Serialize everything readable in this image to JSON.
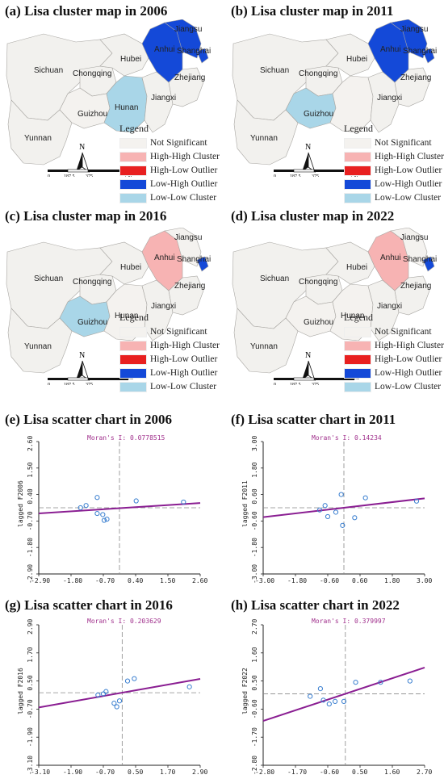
{
  "colors": {
    "not_significant": "#f4f2ef",
    "high_high": "#f7b3b3",
    "high_low": "#e82020",
    "low_high": "#1449d8",
    "low_low": "#a9d6e8",
    "province_fill": "#f2f1ee",
    "province_stroke": "#a8a6a2",
    "regression_line": "#8a1e92",
    "moran_text": "#a0308c",
    "point_stroke": "#3a7fd0",
    "ref_line": "#888888"
  },
  "maps": [
    {
      "title": "(a) Lisa cluster map in 2006",
      "labels": {
        "sichuan": "Sichuan",
        "chongqing": "Chongqing",
        "hubei": "Hubei",
        "hunan": "Hunan",
        "guizhou": "Guizhou",
        "yunnan": "Yunnan",
        "jiangxi": "Jiangxi",
        "anhui": "Anhui",
        "jiangsu": "Jiangsu",
        "shanghai": "Shanghai",
        "zhejiang": "Zhejiang"
      },
      "provinces": {
        "anhui": "Low-High Outlier",
        "jiangsu": "Low-High Outlier",
        "shanghai": "Low-High Outlier",
        "hunan": "Low-Low Cluster",
        "guizhou": "Not Significant"
      }
    },
    {
      "title": "(b) Lisa cluster map in 2011",
      "labels": {
        "sichuan": "Sichuan",
        "chongqing": "Chongqing",
        "hubei": "Hubei",
        "hunan": "",
        "guizhou": "Guizhou",
        "yunnan": "Yunnan",
        "jiangxi": "Jiangxi",
        "anhui": "Anhui",
        "jiangsu": "Jiangsu",
        "shanghai": "Shanghai",
        "zhejiang": "Zhejiang"
      },
      "provinces": {
        "anhui": "Low-High Outlier",
        "jiangsu": "Low-High Outlier",
        "shanghai": "Low-High Outlier",
        "hunan": "Not Significant",
        "guizhou": "Low-Low Cluster"
      }
    },
    {
      "title": "(c) Lisa cluster map in 2016",
      "labels": {
        "sichuan": "Sichuan",
        "chongqing": "Chongqing",
        "hubei": "Hubei",
        "hunan": "Hunan",
        "guizhou": "Guizhou",
        "yunnan": "Yunnan",
        "jiangxi": "Jiangxi",
        "anhui": "Anhui",
        "jiangsu": "Jiangsu",
        "shanghai": "Shanghai",
        "zhejiang": "Zhejiang"
      },
      "provinces": {
        "anhui": "High-High Cluster",
        "jiangsu": "Not Significant",
        "shanghai": "Low-High Outlier",
        "hunan": "Not Significant",
        "guizhou": "Low-Low Cluster"
      }
    },
    {
      "title": "(d) Lisa cluster map in 2022",
      "labels": {
        "sichuan": "Sichuan",
        "chongqing": "Chongqing",
        "hubei": "Hubei",
        "hunan": "Hunan",
        "guizhou": "Guizhou",
        "yunnan": "Yunnan",
        "jiangxi": "Jiangxi",
        "anhui": "Anhui",
        "jiangsu": "Jiangsu",
        "shanghai": "Shanghai",
        "zhejiang": "Zhejiang"
      },
      "provinces": {
        "anhui": "High-High Cluster",
        "jiangsu": "Not Significant",
        "shanghai": "Low-High Outlier",
        "hunan": "Not Significant",
        "guizhou": "Not Significant"
      }
    }
  ],
  "legend": {
    "title": "Legend",
    "items": [
      {
        "label": "Not Significant",
        "color": "#f4f2ef"
      },
      {
        "label": "High-High Cluster",
        "color": "#f7b3b3"
      },
      {
        "label": "High-Low Outlier",
        "color": "#e82020"
      },
      {
        "label": "Low-High Outlier",
        "color": "#1449d8"
      },
      {
        "label": "Low-Low Cluster",
        "color": "#a9d6e8"
      }
    ]
  },
  "scale_bar": {
    "ticks": [
      "0",
      "187.5",
      "375",
      "750"
    ],
    "unit": "Km"
  },
  "north_arrow": {
    "label": "N"
  },
  "chart_data": [
    {
      "type": "scatter",
      "title": "(e) Lisa scatter chart in 2006",
      "annotation": "Moran's I: 0.0778515",
      "ylabel": "lagged F2006",
      "x_ticks": [
        "-2.90",
        "-1.80",
        "-0.70",
        "0.40",
        "1.50",
        "2.60"
      ],
      "y_ticks": [
        "-2.90",
        "-1.80",
        "-0.70",
        "0.40",
        "1.50",
        "2.60"
      ],
      "xlim": [
        -2.9,
        2.9
      ],
      "ylim": [
        -2.9,
        2.9
      ],
      "points": [
        [
          -1.4,
          0.0
        ],
        [
          -1.2,
          0.1
        ],
        [
          -0.8,
          0.45
        ],
        [
          -0.8,
          -0.25
        ],
        [
          -0.6,
          -0.3
        ],
        [
          -0.55,
          -0.55
        ],
        [
          -0.45,
          -0.5
        ],
        [
          0.6,
          0.3
        ],
        [
          2.3,
          0.25
        ]
      ],
      "regression": {
        "slope": 0.0779,
        "intercept": -0.02
      }
    },
    {
      "type": "scatter",
      "title": "(f) Lisa scatter chart in 2011",
      "annotation": "Moran's I: 0.14234",
      "ylabel": "lagged F2011",
      "x_ticks": [
        "-3.00",
        "-1.80",
        "-0.60",
        "0.60",
        "1.80",
        "3.00"
      ],
      "y_ticks": [
        "-3.00",
        "-1.80",
        "-0.60",
        "0.60",
        "1.80",
        "3.00"
      ],
      "xlim": [
        -3.0,
        3.0
      ],
      "ylim": [
        -3.0,
        3.0
      ],
      "points": [
        [
          -0.9,
          -0.1
        ],
        [
          -0.7,
          0.1
        ],
        [
          -0.6,
          -0.4
        ],
        [
          -0.3,
          -0.2
        ],
        [
          -0.1,
          0.6
        ],
        [
          -0.05,
          -0.8
        ],
        [
          0.4,
          -0.45
        ],
        [
          0.8,
          0.45
        ],
        [
          2.7,
          0.3
        ]
      ],
      "regression": {
        "slope": 0.1423,
        "intercept": 0.0
      }
    },
    {
      "type": "scatter",
      "title": "(g) Lisa scatter chart in 2016",
      "annotation": "Moran's I: 0.203629",
      "ylabel": "lagged F2016",
      "x_ticks": [
        "-3.10",
        "-1.90",
        "-0.70",
        "0.50",
        "1.70",
        "2.90"
      ],
      "y_ticks": [
        "-3.10",
        "-1.90",
        "-0.70",
        "0.50",
        "1.70",
        "2.90"
      ],
      "xlim": [
        -3.1,
        2.9
      ],
      "ylim": [
        -3.1,
        2.9
      ],
      "points": [
        [
          -0.9,
          -0.1
        ],
        [
          -0.7,
          -0.05
        ],
        [
          -0.6,
          0.05
        ],
        [
          -0.3,
          -0.45
        ],
        [
          -0.2,
          -0.6
        ],
        [
          -0.1,
          -0.35
        ],
        [
          0.2,
          0.5
        ],
        [
          0.45,
          0.6
        ],
        [
          2.5,
          0.25
        ]
      ],
      "regression": {
        "slope": 0.2036,
        "intercept": 0.0
      }
    },
    {
      "type": "scatter",
      "title": "(h) Lisa  scatter chart in 2022",
      "annotation": "Moran's I: 0.379997",
      "ylabel": "lagged F2022",
      "x_ticks": [
        "-2.80",
        "-1.70",
        "-0.60",
        "0.50",
        "1.60",
        "2.70"
      ],
      "y_ticks": [
        "-2.80",
        "-1.70",
        "-0.60",
        "0.50",
        "1.60",
        "2.70"
      ],
      "xlim": [
        -2.8,
        2.7
      ],
      "ylim": [
        -2.8,
        2.7
      ],
      "points": [
        [
          -1.2,
          -0.1
        ],
        [
          -0.85,
          0.2
        ],
        [
          -0.75,
          -0.25
        ],
        [
          -0.55,
          -0.4
        ],
        [
          -0.35,
          -0.3
        ],
        [
          -0.05,
          -0.3
        ],
        [
          0.35,
          0.45
        ],
        [
          1.2,
          0.45
        ],
        [
          2.2,
          0.5
        ]
      ],
      "regression": {
        "slope": 0.38,
        "intercept": 0.0
      }
    }
  ]
}
